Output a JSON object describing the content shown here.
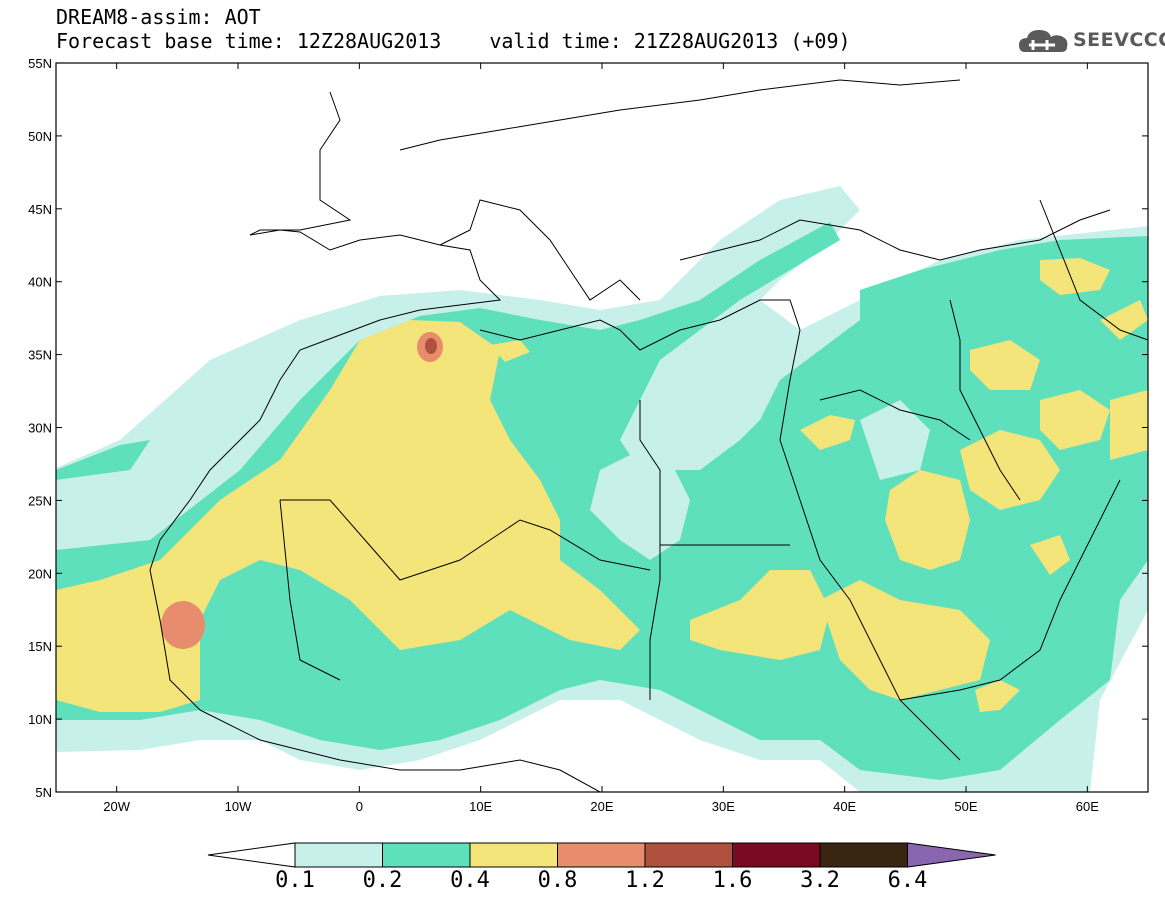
{
  "header": {
    "title": "DREAM8-assim: AOT",
    "base_time_label": "Forecast base time: 12Z28AUG2013",
    "valid_time_label": "valid time: 21Z28AUG2013 (+09)"
  },
  "logo": {
    "text": "SEEVCCC"
  },
  "map": {
    "lat_labels": [
      "55N",
      "50N",
      "45N",
      "40N",
      "35N",
      "30N",
      "25N",
      "20N",
      "15N",
      "10N",
      "5N"
    ],
    "lon_labels": [
      "20W",
      "10W",
      "0",
      "10E",
      "20E",
      "30E",
      "40E",
      "50E",
      "60E"
    ],
    "colors": {
      "land_bg": "#ffffff",
      "light_cyan": "#c8f0ea",
      "green": "#5ee0bc",
      "yellow": "#f4e57a",
      "salmon": "#e88c6e",
      "brown_red": "#b0503e",
      "border": "#000000"
    }
  },
  "colorbar": {
    "labels": [
      "0.1",
      "0.2",
      "0.4",
      "0.8",
      "1.2",
      "1.6",
      "3.2",
      "6.4"
    ],
    "colors": [
      "#c8f0ea",
      "#5ee0bc",
      "#f4e57a",
      "#e88c6e",
      "#b0503e",
      "#7a0a22",
      "#3a2412"
    ],
    "under_color": "#ffffff",
    "over_color": "#8a66b0"
  }
}
